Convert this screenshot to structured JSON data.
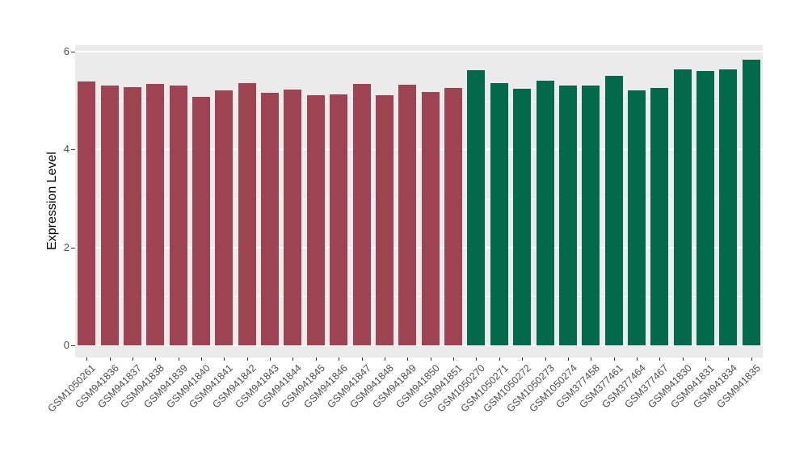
{
  "chart_data": {
    "type": "bar",
    "title": "",
    "xlabel": "",
    "ylabel": "Expression Level",
    "ylim": [
      0,
      6
    ],
    "yticks": [
      0,
      2,
      4,
      6
    ],
    "ytick_labels": [
      "0",
      "2",
      "4",
      "6"
    ],
    "minor_gridlines": [
      1,
      3,
      5
    ],
    "grid": true,
    "legend_position": "none",
    "panel_background": "#EBEBEB",
    "gridline_color": "#FFFFFF",
    "axis_text_color": "#4D4D4D",
    "group_colors": [
      "#9E4352",
      "#026A48"
    ],
    "categories": [
      "GSM1050261",
      "GSM941836",
      "GSM941837",
      "GSM941838",
      "GSM941839",
      "GSM941840",
      "GSM941841",
      "GSM941842",
      "GSM941843",
      "GSM941844",
      "GSM941845",
      "GSM941846",
      "GSM941847",
      "GSM941848",
      "GSM941849",
      "GSM941850",
      "GSM941851",
      "GSM1050270",
      "GSM1050271",
      "GSM1050272",
      "GSM1050273",
      "GSM1050274",
      "GSM377458",
      "GSM377461",
      "GSM377464",
      "GSM377467",
      "GSM941830",
      "GSM941831",
      "GSM941834",
      "GSM941835"
    ],
    "values": [
      5.39,
      5.3,
      5.28,
      5.33,
      5.3,
      5.08,
      5.2,
      5.35,
      5.16,
      5.23,
      5.1,
      5.13,
      5.34,
      5.1,
      5.32,
      5.17,
      5.25,
      5.62,
      5.36,
      5.24,
      5.41,
      5.3,
      5.3,
      5.5,
      5.21,
      5.26,
      5.64,
      5.6,
      5.63,
      5.83
    ],
    "bar_groups": [
      0,
      0,
      0,
      0,
      0,
      0,
      0,
      0,
      0,
      0,
      0,
      0,
      0,
      0,
      0,
      0,
      0,
      1,
      1,
      1,
      1,
      1,
      1,
      1,
      1,
      1,
      1,
      1,
      1,
      1
    ]
  }
}
